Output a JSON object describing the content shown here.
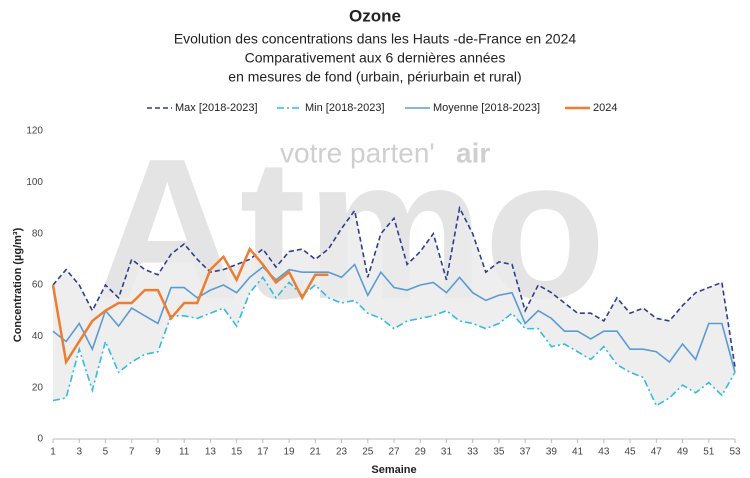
{
  "chart_data": {
    "type": "line",
    "title": "Ozone",
    "subtitle": [
      "Evolution des concentrations dans les Hauts -de-France en 2024",
      "Comparativement aux 6 dernières années",
      "en mesures de fond (urbain, périurbain et rural)"
    ],
    "watermark": {
      "logo": "Atmo",
      "tagline": "votre parten'",
      "tagline_bold": "air"
    },
    "x_label": "Semaine",
    "y_label": "Concentration (µg/m³)",
    "x": [
      1,
      2,
      3,
      4,
      5,
      6,
      7,
      8,
      9,
      10,
      11,
      12,
      13,
      14,
      15,
      16,
      17,
      18,
      19,
      20,
      21,
      22,
      23,
      24,
      25,
      26,
      27,
      28,
      29,
      30,
      31,
      32,
      33,
      34,
      35,
      36,
      37,
      38,
      39,
      40,
      41,
      42,
      43,
      44,
      45,
      46,
      47,
      48,
      49,
      50,
      51,
      52,
      53
    ],
    "xlim": [
      1,
      53
    ],
    "xticks": [
      1,
      3,
      5,
      7,
      9,
      11,
      13,
      15,
      17,
      19,
      21,
      23,
      25,
      27,
      29,
      31,
      33,
      35,
      37,
      39,
      41,
      43,
      45,
      47,
      49,
      51,
      53
    ],
    "ylim": [
      0,
      120
    ],
    "yticks": [
      0,
      20,
      40,
      60,
      80,
      100,
      120
    ],
    "band_color": "#ebebeb",
    "series": [
      {
        "name": "Max [2018-2023]",
        "color": "#2e3f8f",
        "dash": "5,3",
        "values": [
          60,
          66,
          60,
          50,
          60,
          55,
          70,
          66,
          64,
          72,
          76,
          70,
          65,
          66,
          68,
          70,
          74,
          67,
          73,
          74,
          70,
          74,
          82,
          89,
          63,
          80,
          86,
          68,
          73,
          80,
          62,
          90,
          80,
          65,
          69,
          68,
          50,
          60,
          57,
          53,
          49,
          49,
          46,
          55,
          49,
          51,
          47,
          46,
          52,
          57,
          59,
          61,
          28
        ]
      },
      {
        "name": "Min [2018-2023]",
        "color": "#33bbe0",
        "dash": "7,3,2,3",
        "values": [
          15,
          16,
          35,
          19,
          38,
          26,
          30,
          33,
          34,
          48,
          48,
          47,
          49,
          51,
          44,
          57,
          63,
          55,
          61,
          56,
          60,
          55,
          53,
          54,
          49,
          47,
          43,
          46,
          47,
          48,
          50,
          46,
          45,
          43,
          45,
          49,
          43,
          43,
          36,
          37,
          34,
          31,
          36,
          29,
          26,
          24,
          13,
          16,
          21,
          18,
          22,
          17,
          26
        ]
      },
      {
        "name": "Moyenne [2018-2023]",
        "color": "#5b9bd5",
        "values": [
          42,
          38,
          45,
          35,
          50,
          44,
          51,
          48,
          45,
          59,
          59,
          55,
          58,
          60,
          57,
          63,
          67,
          62,
          66,
          65,
          65,
          65,
          63,
          68,
          56,
          65,
          59,
          58,
          60,
          61,
          57,
          63,
          57,
          54,
          56,
          57,
          45,
          50,
          47,
          42,
          42,
          39,
          42,
          42,
          35,
          35,
          34,
          30,
          37,
          31,
          45,
          45,
          26
        ]
      },
      {
        "name": "2024",
        "color": "#ed7d31",
        "width": 2.5,
        "values": [
          60,
          30,
          38,
          46,
          50,
          53,
          53,
          58,
          58,
          47,
          53,
          53,
          66,
          71,
          62,
          74,
          68,
          61,
          65,
          55,
          64,
          64,
          null,
          null,
          null,
          null,
          null,
          null,
          null,
          null,
          null,
          null,
          null,
          null,
          null,
          null,
          null,
          null,
          null,
          null,
          null,
          null,
          null,
          null,
          null,
          null,
          null,
          null,
          null,
          null,
          null,
          null,
          null
        ]
      }
    ]
  }
}
